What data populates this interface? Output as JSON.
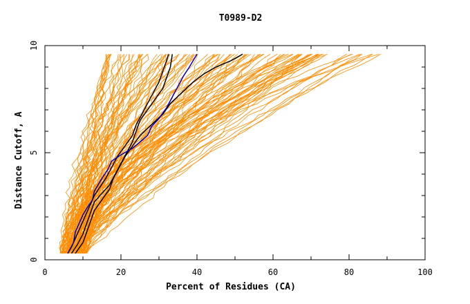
{
  "chart_data": {
    "type": "line",
    "title": "T0989-D2",
    "xlabel": "Percent of Residues (CA)",
    "ylabel": "Distance Cutoff, A",
    "xlim": [
      0,
      100
    ],
    "ylim": [
      0,
      10
    ],
    "x_ticks": [
      0,
      20,
      40,
      60,
      80,
      100
    ],
    "y_ticks": [
      0,
      5,
      10
    ],
    "x_tick_labels": [
      "0",
      "20",
      "40",
      "60",
      "80",
      "100"
    ],
    "y_tick_labels": [
      "0",
      "5",
      "10"
    ],
    "grid": false,
    "legend": "none",
    "colors": {
      "background_curves": "#ff8c00",
      "highlight_black": "#000000",
      "highlight_blue": "#0000cc",
      "axes": "#000000"
    },
    "background_curve_count": 120,
    "series": [
      {
        "color": "#000000",
        "points": [
          [
            6,
            0.3
          ],
          [
            7,
            0.6
          ],
          [
            8,
            1.0
          ],
          [
            9,
            1.4
          ],
          [
            10,
            1.8
          ],
          [
            11,
            2.2
          ],
          [
            12,
            2.6
          ],
          [
            13,
            3.0
          ],
          [
            14.5,
            3.4
          ],
          [
            16,
            3.8
          ],
          [
            17.5,
            4.3
          ],
          [
            19,
            4.8
          ],
          [
            21,
            5.3
          ],
          [
            23,
            5.8
          ],
          [
            24,
            6.3
          ],
          [
            25.5,
            6.8
          ],
          [
            27,
            7.3
          ],
          [
            28.5,
            7.8
          ],
          [
            30,
            8.3
          ],
          [
            31,
            8.8
          ],
          [
            32,
            9.3
          ],
          [
            32.5,
            9.6
          ]
        ]
      },
      {
        "color": "#000000",
        "points": [
          [
            7,
            0.3
          ],
          [
            8.5,
            0.7
          ],
          [
            10,
            1.2
          ],
          [
            11,
            1.7
          ],
          [
            12,
            2.2
          ],
          [
            13,
            2.7
          ],
          [
            15,
            3.1
          ],
          [
            17,
            3.5
          ],
          [
            18.5,
            4.0
          ],
          [
            20,
            4.5
          ],
          [
            21.5,
            5.0
          ],
          [
            23,
            5.5
          ],
          [
            24,
            6.0
          ],
          [
            25,
            6.5
          ],
          [
            27,
            7.0
          ],
          [
            29,
            7.5
          ],
          [
            31,
            8.0
          ],
          [
            32,
            8.5
          ],
          [
            33,
            9.0
          ],
          [
            33.5,
            9.6
          ]
        ]
      },
      {
        "color": "#000000",
        "points": [
          [
            8,
            0.3
          ],
          [
            10,
            0.8
          ],
          [
            11,
            1.3
          ],
          [
            12,
            1.8
          ],
          [
            13,
            2.3
          ],
          [
            15,
            2.8
          ],
          [
            17,
            3.3
          ],
          [
            18,
            3.8
          ],
          [
            19.5,
            4.3
          ],
          [
            21,
            4.8
          ],
          [
            23,
            5.3
          ],
          [
            25,
            5.8
          ],
          [
            28,
            6.3
          ],
          [
            31,
            6.8
          ],
          [
            33,
            7.3
          ],
          [
            36,
            7.8
          ],
          [
            39,
            8.3
          ],
          [
            42,
            8.7
          ],
          [
            45,
            9.0
          ],
          [
            49,
            9.3
          ],
          [
            52,
            9.6
          ]
        ]
      },
      {
        "color": "#0000cc",
        "points": [
          [
            6,
            0.3
          ],
          [
            7.5,
            0.8
          ],
          [
            8,
            1.3
          ],
          [
            9,
            1.7
          ],
          [
            10,
            2.1
          ],
          [
            11,
            2.4
          ],
          [
            12.5,
            2.8
          ],
          [
            13,
            3.2
          ],
          [
            14,
            3.5
          ],
          [
            15,
            3.8
          ],
          [
            16.5,
            4.2
          ],
          [
            17.5,
            4.6
          ],
          [
            20,
            4.9
          ],
          [
            23,
            5.2
          ],
          [
            25,
            5.5
          ],
          [
            27,
            5.8
          ],
          [
            28,
            6.2
          ],
          [
            30,
            6.6
          ],
          [
            32,
            7.1
          ],
          [
            33.5,
            7.6
          ],
          [
            35,
            8.1
          ],
          [
            36.5,
            8.6
          ],
          [
            38,
            9.0
          ],
          [
            40,
            9.6
          ]
        ]
      }
    ]
  }
}
